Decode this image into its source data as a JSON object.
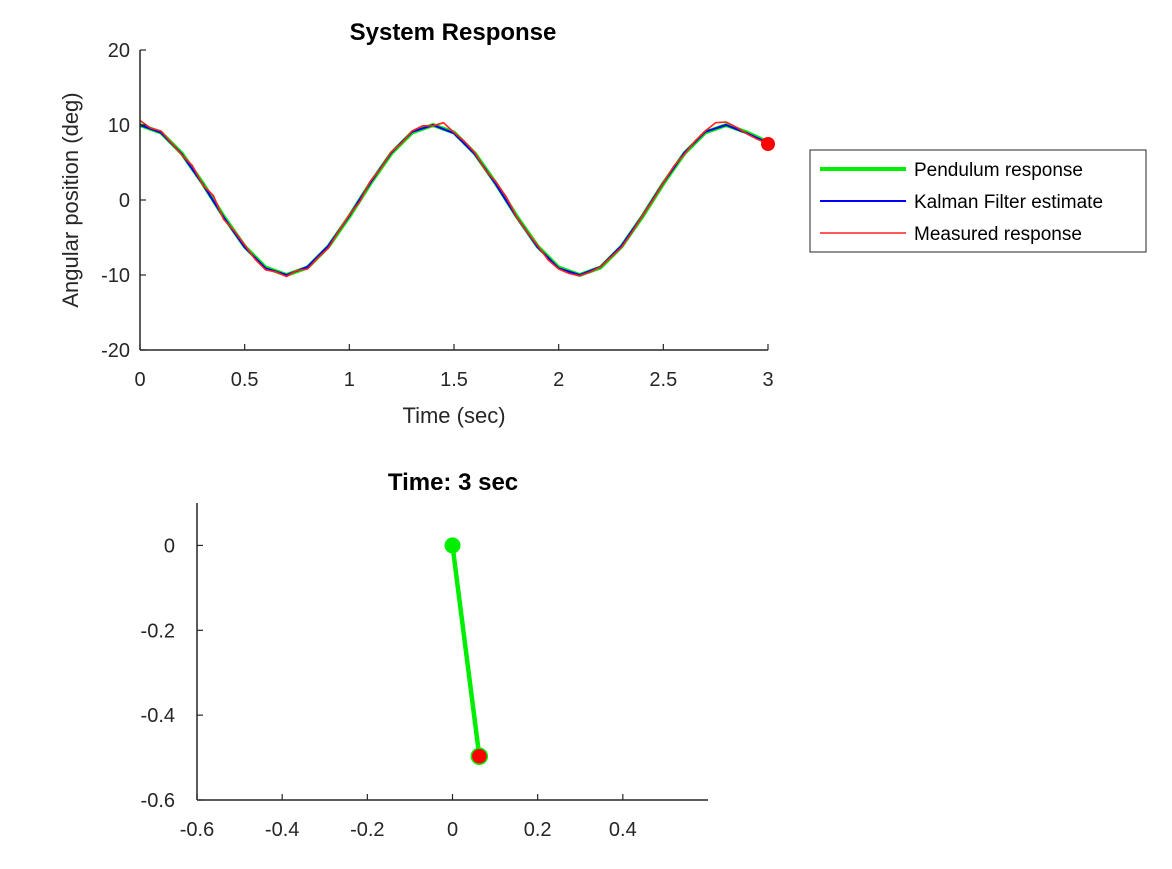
{
  "colors": {
    "pendulum": "#00ee00",
    "kalman": "#0000ff",
    "measured": "#ff2020",
    "axis": "#262626",
    "bob": "#ff0000"
  },
  "chart_data": [
    {
      "type": "line",
      "title": "System Response",
      "xlabel": "Time (sec)",
      "ylabel": "Angular position (deg)",
      "xlim": [
        0,
        3
      ],
      "ylim": [
        -20,
        20
      ],
      "xticks": [
        "0",
        "0.5",
        "1",
        "1.5",
        "2",
        "2.5",
        "3"
      ],
      "yticks": [
        "-20",
        "-10",
        "0",
        "10",
        "20"
      ],
      "grid": false,
      "legend_position": "outside-right",
      "series": [
        {
          "name": "Pendulum response",
          "color": "#00ee00",
          "x": [
            0,
            0.1,
            0.2,
            0.3,
            0.4,
            0.5,
            0.6,
            0.7,
            0.8,
            0.9,
            1.0,
            1.1,
            1.2,
            1.3,
            1.4,
            1.5,
            1.6,
            1.7,
            1.8,
            1.9,
            2.0,
            2.1,
            2.2,
            2.3,
            2.4,
            2.5,
            2.6,
            2.7,
            2.8,
            2.9,
            3.0
          ],
          "y": [
            10.0,
            9.0,
            6.2,
            2.2,
            -2.2,
            -6.2,
            -9.0,
            -10.0,
            -9.0,
            -6.2,
            -2.2,
            2.2,
            6.2,
            9.0,
            10.0,
            9.0,
            6.2,
            2.2,
            -2.2,
            -6.2,
            -9.0,
            -10.0,
            -9.0,
            -6.2,
            -2.2,
            2.2,
            6.2,
            9.0,
            10.0,
            9.0,
            7.7
          ]
        },
        {
          "name": "Kalman Filter estimate",
          "color": "#0000ff",
          "x": [
            0,
            0.1,
            0.2,
            0.3,
            0.4,
            0.5,
            0.6,
            0.7,
            0.8,
            0.9,
            1.0,
            1.1,
            1.2,
            1.3,
            1.4,
            1.5,
            1.6,
            1.7,
            1.8,
            1.9,
            2.0,
            2.1,
            2.2,
            2.3,
            2.4,
            2.5,
            2.6,
            2.7,
            2.8,
            2.9,
            3.0
          ],
          "y": [
            10.0,
            9.0,
            6.1,
            2.1,
            -2.3,
            -6.3,
            -9.1,
            -10.0,
            -8.9,
            -6.1,
            -2.1,
            2.3,
            6.3,
            9.1,
            10.0,
            8.9,
            6.1,
            2.1,
            -2.3,
            -6.3,
            -9.1,
            -10.0,
            -8.9,
            -6.1,
            -2.1,
            2.3,
            6.3,
            9.1,
            10.0,
            8.9,
            7.6
          ]
        },
        {
          "name": "Measured response",
          "color": "#ff2020",
          "x": [
            0,
            0.05,
            0.1,
            0.15,
            0.2,
            0.25,
            0.3,
            0.35,
            0.4,
            0.45,
            0.5,
            0.55,
            0.6,
            0.65,
            0.7,
            0.75,
            0.8,
            0.85,
            0.9,
            0.95,
            1.0,
            1.05,
            1.1,
            1.15,
            1.2,
            1.25,
            1.3,
            1.35,
            1.4,
            1.45,
            1.5,
            1.55,
            1.6,
            1.65,
            1.7,
            1.75,
            1.8,
            1.85,
            1.9,
            1.95,
            2.0,
            2.05,
            2.1,
            2.15,
            2.2,
            2.25,
            2.3,
            2.35,
            2.4,
            2.45,
            2.5,
            2.55,
            2.6,
            2.65,
            2.7,
            2.75,
            2.8,
            2.85,
            2.9,
            2.95,
            3.0
          ],
          "y": [
            10.6,
            9.6,
            9.2,
            7.6,
            6.0,
            4.6,
            2.0,
            0.6,
            -2.6,
            -4.1,
            -6.0,
            -7.9,
            -9.3,
            -9.6,
            -10.2,
            -9.4,
            -9.2,
            -7.7,
            -6.4,
            -4.1,
            -2.0,
            -0.2,
            2.5,
            4.2,
            6.4,
            7.6,
            9.2,
            9.9,
            9.9,
            10.3,
            9.0,
            7.8,
            6.3,
            4.0,
            2.4,
            0.4,
            -2.3,
            -4.3,
            -6.1,
            -8.0,
            -9.2,
            -9.8,
            -10.1,
            -9.6,
            -8.9,
            -7.6,
            -6.3,
            -4.3,
            -2.1,
            0.0,
            2.3,
            4.5,
            6.1,
            7.8,
            9.2,
            10.3,
            10.4,
            9.7,
            8.8,
            8.1,
            7.5
          ]
        }
      ],
      "end_marker": {
        "x": 3.0,
        "y": 7.6,
        "color": "#ff0000"
      }
    },
    {
      "type": "line",
      "title": "Time: 3 sec",
      "xlabel": "",
      "ylabel": "",
      "xlim": [
        -0.6,
        0.6
      ],
      "ylim": [
        -0.6,
        0.1
      ],
      "xticks": [
        "-0.6",
        "-0.4",
        "-0.2",
        "0",
        "0.2",
        "0.4"
      ],
      "yticks": [
        "-0.6",
        "-0.4",
        "-0.2",
        "0"
      ],
      "grid": false,
      "rod": {
        "x": [
          0,
          0.063
        ],
        "y": [
          0,
          -0.497
        ],
        "color": "#00ee00"
      },
      "pivot": {
        "x": 0,
        "y": 0,
        "color": "#00ee00"
      },
      "bob": {
        "x": 0.063,
        "y": -0.497,
        "color": "#ff0000"
      }
    }
  ]
}
